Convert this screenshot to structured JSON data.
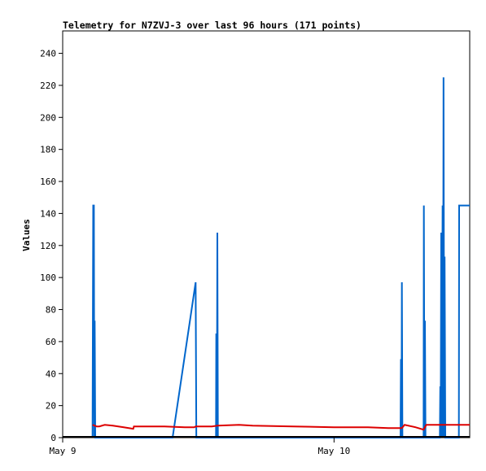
{
  "chart_data": {
    "type": "line",
    "title": "Telemetry for N7ZVJ-3 over last 96 hours (171 points)",
    "xlabel": "",
    "ylabel": "Values",
    "xlim": [
      0,
      30
    ],
    "ylim": [
      0,
      254
    ],
    "yticks": [
      0,
      20,
      40,
      60,
      80,
      100,
      120,
      140,
      160,
      180,
      200,
      220,
      240
    ],
    "xticks": [
      {
        "label": "May 9",
        "x": 0
      },
      {
        "label": "May 10",
        "x": 20
      }
    ],
    "grid": false,
    "legend": "none",
    "series": [
      {
        "color": "#0066cc",
        "points": [
          [
            2.2,
            0
          ],
          [
            2.25,
            145
          ],
          [
            2.3,
            145
          ],
          [
            2.33,
            0
          ],
          [
            2.36,
            73
          ],
          [
            2.4,
            0
          ],
          [
            8.1,
            0
          ],
          [
            9.8,
            97
          ],
          [
            9.85,
            0
          ],
          [
            11.3,
            0
          ],
          [
            11.32,
            65
          ],
          [
            11.36,
            0
          ],
          [
            11.4,
            128
          ],
          [
            11.44,
            0
          ],
          [
            24.9,
            0
          ],
          [
            24.93,
            49
          ],
          [
            24.97,
            0
          ],
          [
            25.0,
            97
          ],
          [
            25.04,
            0
          ],
          [
            26.6,
            0
          ],
          [
            26.62,
            145
          ],
          [
            26.66,
            0
          ],
          [
            26.7,
            73
          ],
          [
            26.74,
            0
          ],
          [
            27.8,
            0
          ],
          [
            27.83,
            32
          ],
          [
            27.86,
            0
          ],
          [
            27.9,
            128
          ],
          [
            27.94,
            0
          ],
          [
            28.0,
            145
          ],
          [
            28.03,
            0
          ],
          [
            28.07,
            225
          ],
          [
            28.12,
            0
          ],
          [
            28.15,
            113
          ],
          [
            28.2,
            0
          ],
          [
            29.2,
            0
          ],
          [
            29.22,
            145
          ],
          [
            30.0,
            145
          ]
        ]
      },
      {
        "color": "#dd0000",
        "points": [
          [
            2.2,
            8
          ],
          [
            2.5,
            7
          ],
          [
            2.7,
            7
          ],
          [
            3.1,
            8
          ],
          [
            3.7,
            7.5
          ],
          [
            4.5,
            6.5
          ],
          [
            5.2,
            5.5
          ],
          [
            5.25,
            7
          ],
          [
            6.0,
            7
          ],
          [
            7.5,
            7
          ],
          [
            9.0,
            6.5
          ],
          [
            9.7,
            6.5
          ],
          [
            9.8,
            7
          ],
          [
            11.0,
            7
          ],
          [
            11.4,
            7.5
          ],
          [
            13.0,
            8
          ],
          [
            14.0,
            7.5
          ],
          [
            17.0,
            7
          ],
          [
            20.0,
            6.5
          ],
          [
            22.5,
            6.5
          ],
          [
            24.0,
            6
          ],
          [
            25.0,
            6
          ],
          [
            25.2,
            8
          ],
          [
            26.0,
            6.5
          ],
          [
            26.6,
            5
          ],
          [
            26.8,
            8
          ],
          [
            30.0,
            8
          ]
        ]
      },
      {
        "color": "#000000",
        "points": [
          [
            0,
            0.5
          ],
          [
            30,
            0.5
          ]
        ]
      }
    ]
  }
}
